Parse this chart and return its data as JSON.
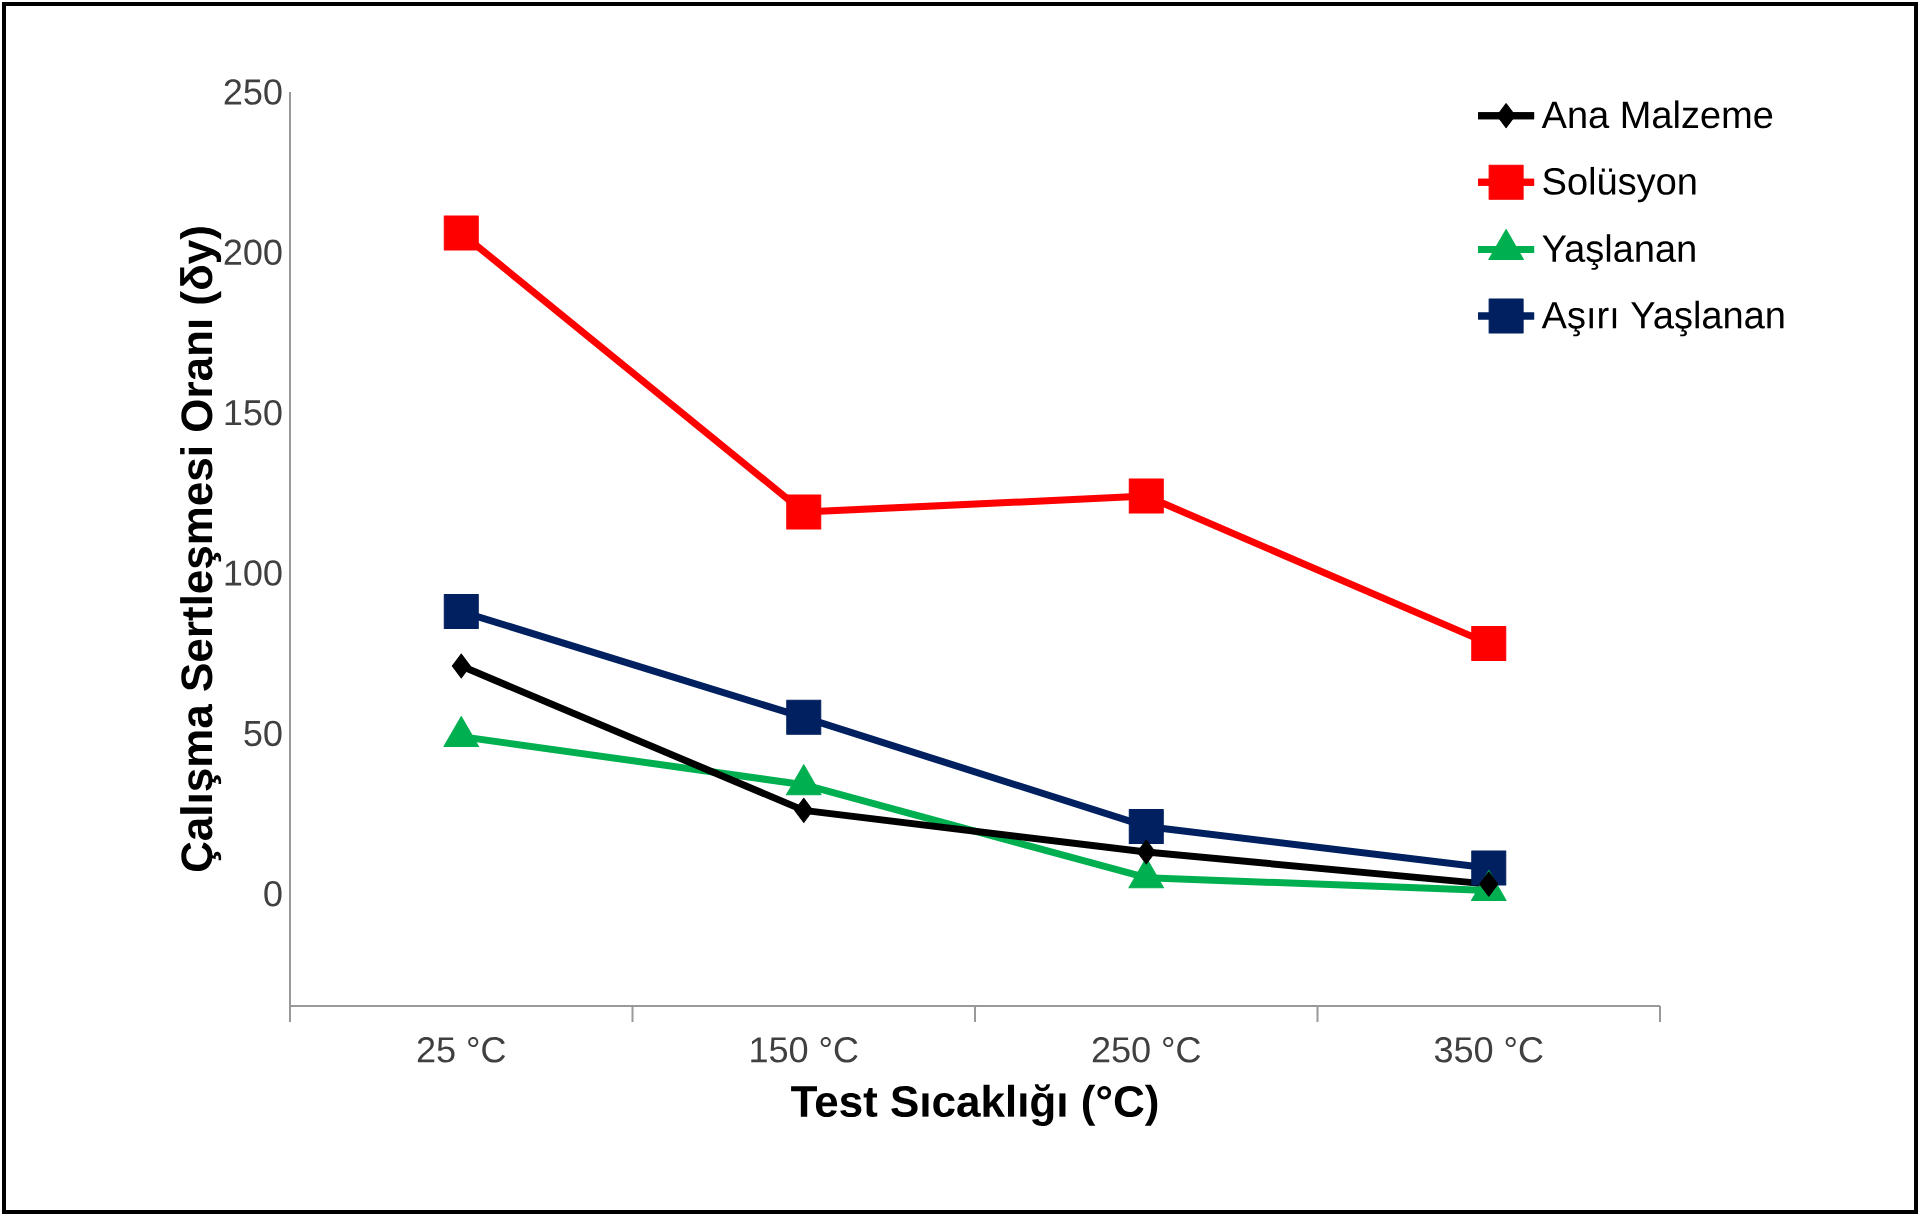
{
  "chart_data": {
    "type": "line",
    "xlabel": "Test Sıcaklığı (°C)",
    "ylabel": "Çalışma Sertleşmesi Oranı (δy)",
    "categories": [
      "25 °C",
      "150 °C",
      "250 °C",
      "350 °C"
    ],
    "ylim": [
      -35,
      250
    ],
    "yticks": [
      0,
      50,
      100,
      150,
      200,
      250
    ],
    "legend": "top right",
    "grid": false,
    "series": [
      {
        "name": "Ana Malzeme",
        "color": "#000000",
        "marker": "diamond",
        "values": [
          71,
          26,
          13,
          3
        ]
      },
      {
        "name": "Solüsyon",
        "color": "#ff0000",
        "marker": "square",
        "values": [
          206,
          119,
          124,
          78
        ]
      },
      {
        "name": "Yaşlanan",
        "color": "#00b050",
        "marker": "triangle",
        "values": [
          49,
          34,
          5,
          1
        ]
      },
      {
        "name": "Aşırı Yaşlanan",
        "color": "#002060",
        "marker": "square",
        "values": [
          88,
          55,
          21,
          8
        ]
      }
    ]
  }
}
